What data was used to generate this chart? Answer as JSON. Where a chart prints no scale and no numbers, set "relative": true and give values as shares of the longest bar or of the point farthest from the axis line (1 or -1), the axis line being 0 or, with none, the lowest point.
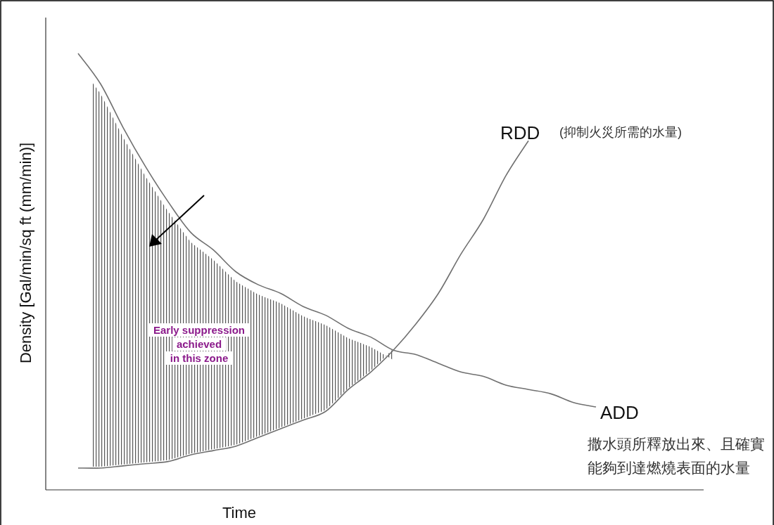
{
  "chart_data": {
    "type": "line",
    "relative": true,
    "xlabel": "Time",
    "ylabel": "Density [Gal/min/sq ft (mm/min)]",
    "categories": [
      null,
      null,
      null,
      null,
      null,
      null,
      null,
      null,
      null,
      null,
      null,
      null,
      null,
      null,
      null,
      null,
      null,
      null,
      null,
      null,
      null,
      null,
      null,
      null
    ],
    "series": [
      {
        "name": "RDD",
        "color": "#707070",
        "values": [
          0.05,
          0.05,
          0.055,
          0.06,
          0.065,
          0.08,
          0.09,
          0.1,
          0.12,
          0.14,
          0.16,
          0.18,
          0.23,
          0.27,
          0.32,
          0.38,
          0.45,
          0.54,
          0.62,
          0.72,
          0.8,
          null,
          null,
          null
        ]
      },
      {
        "name": "ADD",
        "color": "#707070",
        "values": [
          1.0,
          0.93,
          0.83,
          0.74,
          0.66,
          0.59,
          0.55,
          0.5,
          0.47,
          0.45,
          0.42,
          0.4,
          0.37,
          0.35,
          0.32,
          0.31,
          0.29,
          0.27,
          0.26,
          0.24,
          0.23,
          0.22,
          0.2,
          0.19
        ]
      }
    ],
    "annotations": [
      "Early suppression\nachieved\nin this zone",
      "(抑制火災所需的水量)",
      "撒水頭所釋放出來、且確實",
      "能夠到達燃燒表面的水量"
    ]
  }
}
